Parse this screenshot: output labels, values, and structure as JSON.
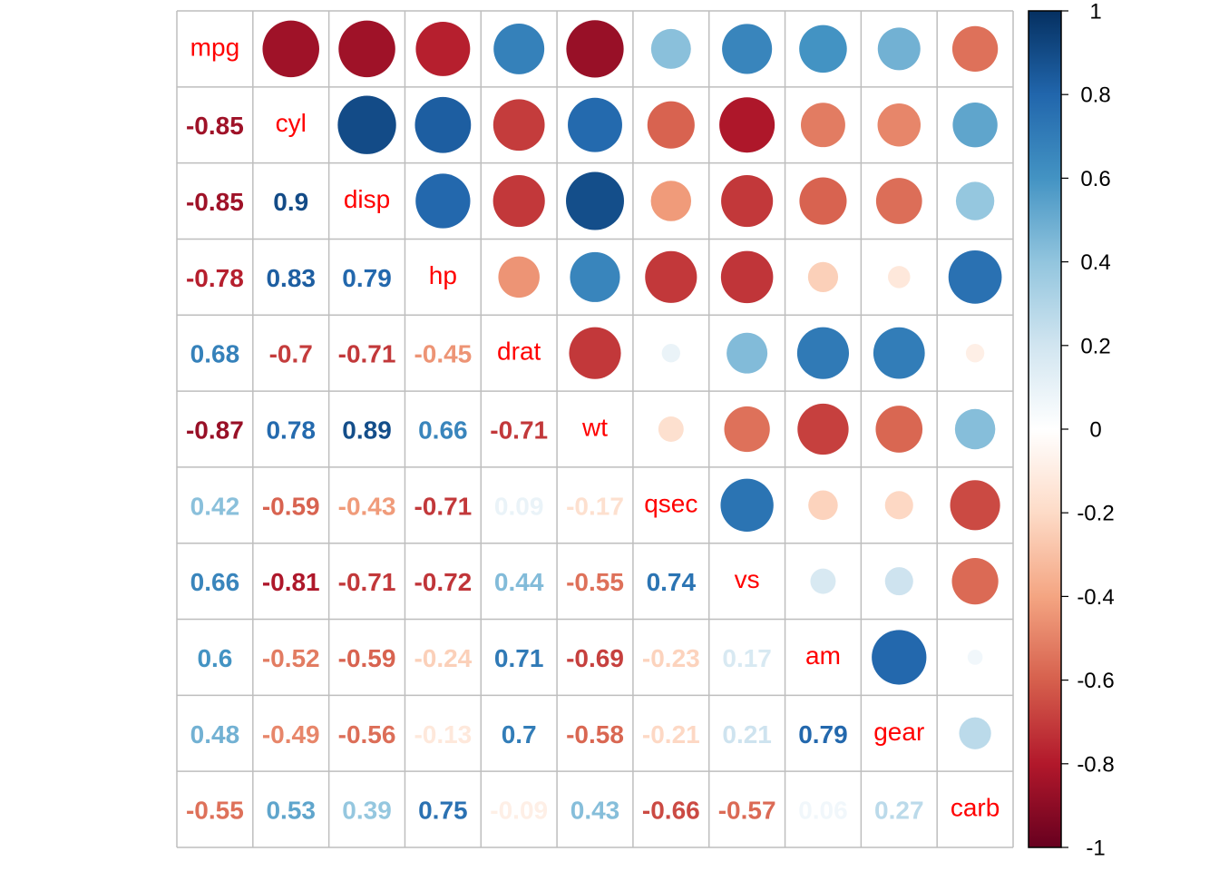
{
  "chart_data": {
    "type": "heatmap",
    "style": "correlation matrix: circles in upper triangle, numeric coefficients in lower triangle, variable names on diagonal",
    "variables": [
      "mpg",
      "cyl",
      "disp",
      "hp",
      "drat",
      "wt",
      "qsec",
      "vs",
      "am",
      "gear",
      "carb"
    ],
    "matrix": [
      [
        1,
        -0.85,
        -0.85,
        -0.78,
        0.68,
        -0.87,
        0.42,
        0.66,
        0.6,
        0.48,
        -0.55
      ],
      [
        -0.85,
        1,
        0.9,
        0.83,
        -0.7,
        0.78,
        -0.59,
        -0.81,
        -0.52,
        -0.49,
        0.53
      ],
      [
        -0.85,
        0.9,
        1,
        0.79,
        -0.71,
        0.89,
        -0.43,
        -0.71,
        -0.59,
        -0.56,
        0.39
      ],
      [
        -0.78,
        0.83,
        0.79,
        1,
        -0.45,
        0.66,
        -0.71,
        -0.72,
        -0.24,
        -0.13,
        0.75
      ],
      [
        0.68,
        -0.7,
        -0.71,
        -0.45,
        1,
        -0.71,
        0.09,
        0.44,
        0.71,
        0.7,
        -0.09
      ],
      [
        -0.87,
        0.78,
        0.89,
        0.66,
        -0.71,
        1,
        -0.17,
        -0.55,
        -0.69,
        -0.58,
        0.43
      ],
      [
        0.42,
        -0.59,
        -0.43,
        -0.71,
        0.09,
        -0.17,
        1,
        0.74,
        -0.23,
        -0.21,
        -0.66
      ],
      [
        0.66,
        -0.81,
        -0.71,
        -0.72,
        0.44,
        -0.55,
        0.74,
        1,
        0.17,
        0.21,
        -0.57
      ],
      [
        0.6,
        -0.52,
        -0.59,
        -0.24,
        0.71,
        -0.69,
        -0.23,
        0.17,
        1,
        0.79,
        0.06
      ],
      [
        0.48,
        -0.49,
        -0.56,
        -0.13,
        0.7,
        -0.58,
        -0.21,
        0.21,
        0.79,
        1,
        0.27
      ],
      [
        -0.55,
        0.53,
        0.39,
        0.75,
        -0.09,
        0.43,
        -0.66,
        -0.57,
        0.06,
        0.27,
        1
      ]
    ],
    "lower_labels": [
      [
        null,
        null,
        null,
        null,
        null,
        null,
        null,
        null,
        null,
        null,
        null
      ],
      [
        "-0.85",
        null,
        null,
        null,
        null,
        null,
        null,
        null,
        null,
        null,
        null
      ],
      [
        "-0.85",
        "0.9",
        null,
        null,
        null,
        null,
        null,
        null,
        null,
        null,
        null
      ],
      [
        "-0.78",
        "0.83",
        "0.79",
        null,
        null,
        null,
        null,
        null,
        null,
        null,
        null
      ],
      [
        "0.68",
        "-0.7",
        "-0.71",
        "-0.45",
        null,
        null,
        null,
        null,
        null,
        null,
        null
      ],
      [
        "-0.87",
        "0.78",
        "0.89",
        "0.66",
        "-0.71",
        null,
        null,
        null,
        null,
        null,
        null
      ],
      [
        "0.42",
        "-0.59",
        "-0.43",
        "-0.71",
        "0.09",
        "-0.17",
        null,
        null,
        null,
        null,
        null
      ],
      [
        "0.66",
        "-0.81",
        "-0.71",
        "-0.72",
        "0.44",
        "-0.55",
        "0.74",
        null,
        null,
        null,
        null
      ],
      [
        "0.6",
        "-0.52",
        "-0.59",
        "-0.24",
        "0.71",
        "-0.69",
        "-0.23",
        "0.17",
        null,
        null,
        null
      ],
      [
        "0.48",
        "-0.49",
        "-0.56",
        "-0.13",
        "0.7",
        "-0.58",
        "-0.21",
        "0.21",
        "0.79",
        null,
        null
      ],
      [
        "-0.55",
        "0.53",
        "0.39",
        "0.75",
        "-0.09",
        "0.43",
        "-0.66",
        "-0.57",
        "0.06",
        "0.27",
        null
      ]
    ],
    "colorbar": {
      "range": [
        -1,
        1
      ],
      "ticks": [
        "1",
        "0.8",
        "0.6",
        "0.4",
        "0.2",
        "0",
        "-0.2",
        "-0.4",
        "-0.6",
        "-0.8",
        "-1"
      ],
      "palette": [
        "#67001F",
        "#B2182B",
        "#D6604D",
        "#F4A582",
        "#FDDBC7",
        "#FFFFFF",
        "#D1E5F0",
        "#92C5DE",
        "#4393C3",
        "#2166AC",
        "#053061"
      ]
    },
    "diagonal_label_color": "#FF0000",
    "grid_color": "#BEBEBE"
  }
}
